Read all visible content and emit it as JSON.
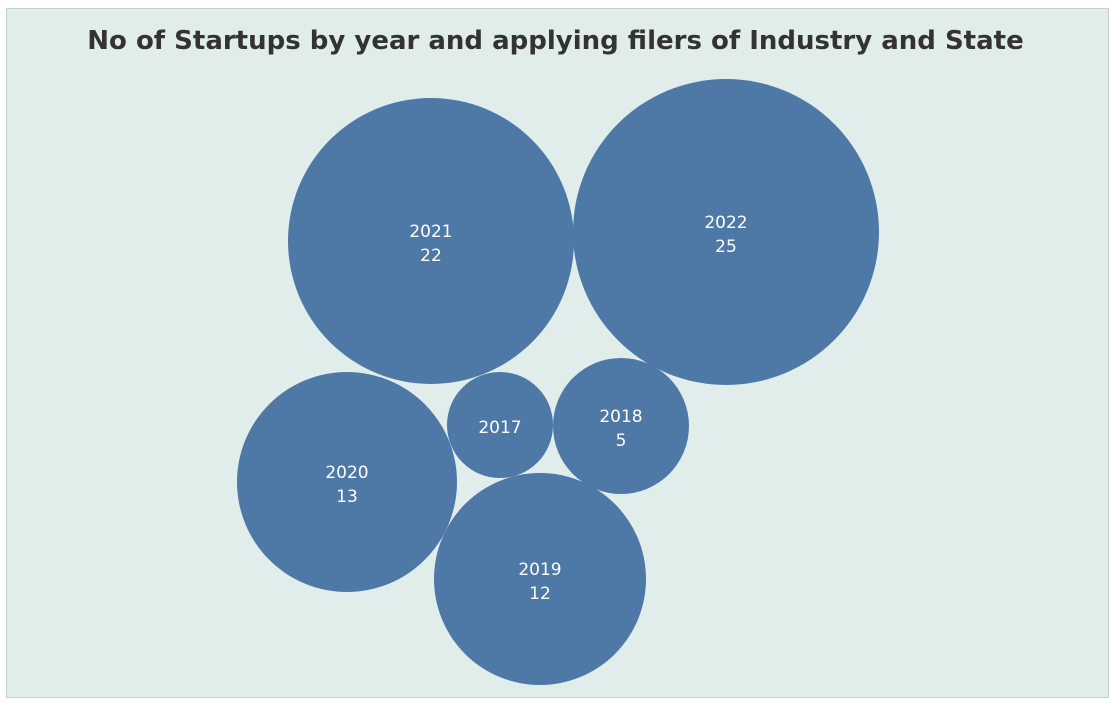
{
  "chart_data": {
    "type": "bubble",
    "title": "No of Startups by year and applying filers of Industry and State",
    "points": [
      {
        "year": "2017",
        "value": null
      },
      {
        "year": "2018",
        "value": 5
      },
      {
        "year": "2019",
        "value": 12
      },
      {
        "year": "2020",
        "value": 13
      },
      {
        "year": "2021",
        "value": 22
      },
      {
        "year": "2022",
        "value": 25
      }
    ],
    "bubble_color": "#4e79a7",
    "background_color": "#e0edea",
    "label_color": "#ffffff"
  }
}
